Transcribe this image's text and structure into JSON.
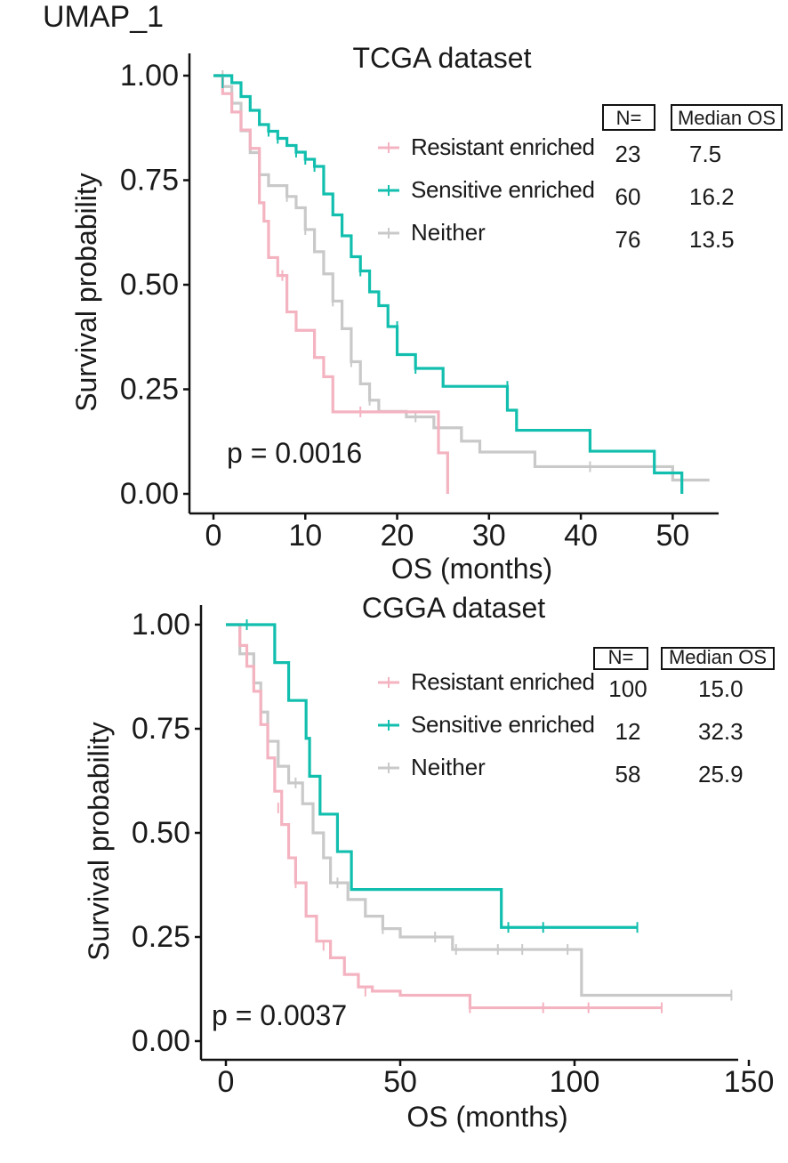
{
  "figure_label": "UMAP_1",
  "colors": {
    "resistant": "#f4b3c0",
    "sensitive": "#12bfae",
    "neither": "#c9c9c9",
    "axis": "#111111"
  },
  "chart_data": [
    {
      "type": "line",
      "subtype": "kaplan-meier",
      "title": "TCGA dataset",
      "xlabel": "OS (months)",
      "ylabel": "Survival probability",
      "xlim": [
        0,
        55
      ],
      "ylim": [
        0,
        1
      ],
      "xticks": [
        "0",
        "10",
        "20",
        "30",
        "40",
        "50"
      ],
      "yticks": [
        "0.00",
        "0.25",
        "0.50",
        "0.75",
        "1.00"
      ],
      "pvalue": "p = 0.0016",
      "table_headers": [
        "N=",
        "Median OS"
      ],
      "series": [
        {
          "name": "Resistant enriched",
          "color_key": "resistant",
          "n": "23",
          "median_os": "7.5",
          "x": [
            0,
            1,
            2,
            3,
            4,
            5,
            5.5,
            6,
            7,
            8,
            9,
            11,
            12,
            13,
            24.5,
            25.5
          ],
          "y": [
            1.0,
            0.957,
            0.913,
            0.87,
            0.826,
            0.696,
            0.652,
            0.565,
            0.522,
            0.435,
            0.391,
            0.326,
            0.28,
            0.196,
            0.098,
            0.0
          ],
          "censor_x": [
            7.5,
            16
          ],
          "censor_y": [
            0.522,
            0.196
          ]
        },
        {
          "name": "Sensitive enriched",
          "color_key": "sensitive",
          "n": "60",
          "median_os": "16.2",
          "x": [
            0,
            2,
            3,
            4,
            5,
            6,
            7,
            8,
            9,
            10,
            11,
            12,
            13,
            14,
            15,
            16,
            17,
            18,
            19,
            20,
            22,
            25,
            32,
            33,
            41,
            48,
            51
          ],
          "y": [
            1.0,
            0.983,
            0.95,
            0.917,
            0.883,
            0.867,
            0.85,
            0.833,
            0.817,
            0.8,
            0.783,
            0.717,
            0.667,
            0.617,
            0.567,
            0.533,
            0.483,
            0.45,
            0.4,
            0.333,
            0.3,
            0.257,
            0.2,
            0.152,
            0.102,
            0.05,
            0.0
          ],
          "censor_x": [
            1,
            6,
            7,
            9,
            10,
            11,
            16,
            20,
            22,
            32
          ],
          "censor_y": [
            0.983,
            0.867,
            0.85,
            0.817,
            0.8,
            0.783,
            0.533,
            0.4,
            0.3,
            0.257
          ],
          "median_x": 16.2
        },
        {
          "name": "Neither",
          "color_key": "neither",
          "n": "76",
          "median_os": "13.5",
          "x": [
            0,
            1,
            2,
            3,
            4,
            5,
            6,
            8,
            9,
            10,
            11,
            12,
            13,
            14,
            15,
            16,
            17,
            18,
            21,
            24,
            27,
            29,
            35,
            50,
            54
          ],
          "y": [
            1.0,
            0.974,
            0.934,
            0.868,
            0.816,
            0.763,
            0.737,
            0.711,
            0.684,
            0.632,
            0.579,
            0.526,
            0.461,
            0.395,
            0.316,
            0.263,
            0.224,
            0.197,
            0.184,
            0.158,
            0.126,
            0.1,
            0.065,
            0.033,
            0.033
          ],
          "censor_x": [
            1,
            5,
            8,
            10,
            13,
            15,
            17,
            22,
            41
          ],
          "censor_y": [
            1.0,
            0.763,
            0.711,
            0.632,
            0.461,
            0.316,
            0.224,
            0.184,
            0.065
          ]
        }
      ]
    },
    {
      "type": "line",
      "subtype": "kaplan-meier",
      "title": "CGGA dataset",
      "xlabel": "OS (months)",
      "ylabel": "Survival probability",
      "xlim": [
        0,
        150
      ],
      "ylim": [
        0,
        1
      ],
      "xticks": [
        "0",
        "50",
        "100",
        "150"
      ],
      "yticks": [
        "0.00",
        "0.25",
        "0.50",
        "0.75",
        "1.00"
      ],
      "pvalue": "p = 0.0037",
      "table_headers": [
        "N=",
        "Median OS"
      ],
      "series": [
        {
          "name": "Resistant enriched",
          "color_key": "resistant",
          "n": "100",
          "median_os": "15.0",
          "x": [
            0,
            4,
            6,
            8,
            10,
            12,
            14,
            16,
            18,
            20,
            23,
            26,
            30,
            34,
            38,
            42,
            46,
            50,
            70,
            125
          ],
          "y": [
            1.0,
            0.95,
            0.9,
            0.84,
            0.76,
            0.68,
            0.6,
            0.52,
            0.44,
            0.38,
            0.3,
            0.24,
            0.2,
            0.16,
            0.13,
            0.12,
            0.12,
            0.11,
            0.08,
            0.08
          ],
          "censor_x": [
            15,
            20,
            28,
            40,
            70,
            91,
            104,
            125
          ],
          "censor_y": [
            0.56,
            0.38,
            0.23,
            0.12,
            0.08,
            0.08,
            0.08,
            0.08
          ]
        },
        {
          "name": "Sensitive enriched",
          "color_key": "sensitive",
          "n": "12",
          "median_os": "32.3",
          "x": [
            0,
            14,
            18,
            23,
            24,
            27,
            32,
            36,
            79,
            118
          ],
          "y": [
            1.0,
            0.909,
            0.818,
            0.727,
            0.636,
            0.545,
            0.455,
            0.364,
            0.273,
            0.273
          ],
          "censor_x": [
            6,
            81,
            91,
            118
          ],
          "censor_y": [
            1.0,
            0.273,
            0.273,
            0.273
          ]
        },
        {
          "name": "Neither",
          "color_key": "neither",
          "n": "58",
          "median_os": "25.9",
          "x": [
            0,
            4,
            8,
            10,
            12,
            15,
            18,
            22,
            25,
            28,
            30,
            35,
            40,
            45,
            50,
            65,
            102,
            145
          ],
          "y": [
            1.0,
            0.93,
            0.86,
            0.79,
            0.72,
            0.66,
            0.62,
            0.57,
            0.5,
            0.44,
            0.38,
            0.34,
            0.3,
            0.27,
            0.25,
            0.22,
            0.11,
            0.11
          ],
          "censor_x": [
            8,
            20,
            32,
            45,
            60,
            66,
            78,
            85,
            98,
            145
          ],
          "censor_y": [
            0.86,
            0.62,
            0.38,
            0.27,
            0.25,
            0.22,
            0.22,
            0.22,
            0.22,
            0.11
          ]
        }
      ]
    }
  ]
}
